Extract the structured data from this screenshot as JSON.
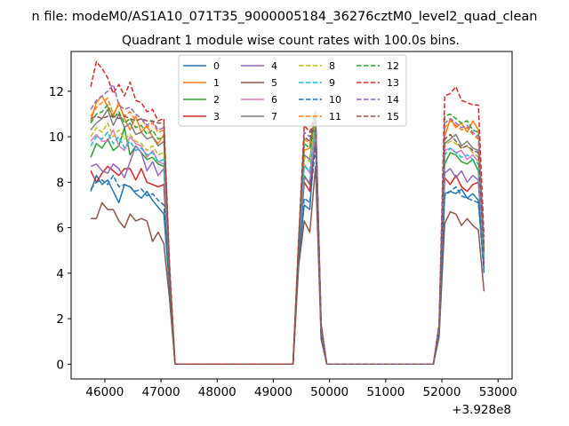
{
  "figure": {
    "suptitle": "n file: modeM0/AS1A10_071T35_9000005184_36276cztM0_level2_quad_clean",
    "offset_label": "+3.928e8"
  },
  "chart_data": {
    "type": "line",
    "title": "Quadrant 1 module wise count rates with 100.0s bins.",
    "xlabel": "",
    "ylabel": "",
    "xlim": [
      45400,
      53250
    ],
    "ylim": [
      -0.65,
      13.75
    ],
    "x_ticks": [
      46000,
      47000,
      48000,
      49000,
      50000,
      51000,
      52000,
      53000
    ],
    "y_ticks": [
      0,
      2,
      4,
      6,
      8,
      10,
      12
    ],
    "grid": false,
    "legend": {
      "placement": "upper-center",
      "columns": 4
    },
    "x_segments": [
      [
        45750,
        45850,
        45950,
        46050,
        46150,
        46250,
        46350,
        46450,
        46550,
        46650,
        46750,
        46850,
        46950,
        47050,
        47150,
        47250,
        49350,
        49450,
        49550,
        49650,
        49750,
        49850,
        49950,
        51850,
        51950,
        52050,
        52150,
        52250,
        52350,
        52450,
        52550,
        52650,
        52750
      ]
    ],
    "series": [
      {
        "name": "0",
        "color": "#1f77b4",
        "style": "solid",
        "values": [
          7.6,
          8.3,
          7.9,
          8.1,
          7.6,
          7.1,
          7.9,
          7.8,
          7.5,
          7.3,
          7.6,
          7.2,
          6.9,
          6.6,
          3.4,
          0,
          0,
          4.6,
          7.0,
          6.8,
          10.5,
          1.3,
          0,
          0,
          1.3,
          7.5,
          7.6,
          7.5,
          7.7,
          7.3,
          7.5,
          7.2,
          4.2
        ]
      },
      {
        "name": "1",
        "color": "#ff7f0e",
        "style": "solid",
        "values": [
          10.7,
          11.5,
          11.8,
          11.3,
          10.9,
          11.5,
          10.8,
          10.3,
          10.9,
          10.2,
          10.5,
          10.0,
          9.7,
          10.1,
          4.1,
          0,
          0,
          5.2,
          9.4,
          9.5,
          10.8,
          1.7,
          0,
          0,
          1.6,
          10.0,
          10.8,
          10.4,
          10.6,
          10.2,
          10.7,
          10.3,
          5.2
        ]
      },
      {
        "name": "2",
        "color": "#2ca02c",
        "style": "solid",
        "values": [
          9.1,
          9.7,
          9.5,
          9.9,
          9.4,
          9.6,
          10.4,
          9.2,
          9.6,
          9.3,
          9.0,
          9.1,
          8.8,
          8.7,
          3.7,
          0,
          0,
          4.9,
          8.3,
          7.9,
          10.6,
          1.4,
          0,
          0,
          1.4,
          8.8,
          9.3,
          9.2,
          8.9,
          8.8,
          9.0,
          8.5,
          4.6
        ]
      },
      {
        "name": "3",
        "color": "#d62728",
        "style": "solid",
        "values": [
          8.5,
          8.0,
          8.4,
          8.7,
          8.5,
          8.3,
          8.6,
          8.6,
          8.1,
          8.6,
          8.0,
          7.9,
          7.8,
          7.9,
          3.6,
          0,
          0,
          4.8,
          8.0,
          7.6,
          10.1,
          1.4,
          0,
          0,
          1.4,
          8.2,
          7.9,
          8.3,
          7.8,
          7.6,
          7.9,
          8.0,
          4.4
        ]
      },
      {
        "name": "4",
        "color": "#9467bd",
        "style": "solid",
        "values": [
          8.7,
          8.8,
          8.5,
          8.4,
          8.8,
          8.6,
          8.2,
          8.9,
          9.6,
          9.3,
          8.5,
          8.9,
          8.3,
          8.6,
          3.8,
          0,
          0,
          4.9,
          8.2,
          8.0,
          10.3,
          1.4,
          0,
          0,
          1.5,
          8.4,
          8.6,
          8.2,
          8.5,
          8.0,
          8.3,
          8.1,
          4.5
        ]
      },
      {
        "name": "5",
        "color": "#8c564b",
        "style": "solid",
        "values": [
          6.4,
          6.4,
          7.1,
          6.8,
          6.8,
          6.3,
          6.0,
          6.6,
          6.3,
          6.4,
          6.3,
          5.4,
          5.8,
          5.3,
          2.9,
          0,
          0,
          4.3,
          6.3,
          5.8,
          8.7,
          1.1,
          0,
          0,
          1.2,
          6.2,
          6.7,
          6.6,
          6.1,
          6.4,
          6.1,
          5.9,
          3.2
        ]
      },
      {
        "name": "6",
        "color": "#e377c2",
        "style": "solid",
        "values": [
          9.8,
          10.1,
          9.8,
          9.8,
          10.3,
          9.6,
          9.4,
          10.0,
          9.7,
          9.6,
          9.1,
          9.4,
          8.9,
          8.8,
          3.9,
          0,
          0,
          5.0,
          8.8,
          8.4,
          10.2,
          1.5,
          0,
          0,
          1.5,
          9.4,
          9.5,
          9.3,
          9.4,
          9.0,
          9.2,
          8.9,
          4.7
        ]
      },
      {
        "name": "7",
        "color": "#7f7f7f",
        "style": "solid",
        "values": [
          10.3,
          10.6,
          10.8,
          11.2,
          10.5,
          11.0,
          10.4,
          10.6,
          10.1,
          10.2,
          9.9,
          10.0,
          9.6,
          9.8,
          4.0,
          0,
          0,
          5.1,
          9.2,
          9.0,
          10.9,
          1.6,
          0,
          0,
          1.6,
          9.7,
          9.9,
          10.1,
          9.6,
          9.8,
          9.5,
          9.4,
          4.9
        ]
      },
      {
        "name": "8",
        "color": "#bcbd22",
        "style": "dashed",
        "values": [
          10.0,
          10.4,
          10.2,
          10.6,
          10.0,
          10.3,
          9.9,
          10.1,
          9.8,
          9.7,
          9.4,
          9.6,
          9.2,
          9.3,
          3.9,
          0,
          0,
          5.0,
          9.1,
          8.9,
          10.7,
          1.5,
          0,
          0,
          1.5,
          9.6,
          9.8,
          9.7,
          9.5,
          9.6,
          9.3,
          9.1,
          4.8
        ]
      },
      {
        "name": "9",
        "color": "#17becf",
        "style": "dashed",
        "values": [
          9.6,
          10.0,
          9.9,
          10.2,
          9.7,
          10.0,
          9.5,
          9.8,
          9.4,
          9.5,
          9.2,
          9.3,
          8.9,
          9.0,
          3.8,
          0,
          0,
          4.9,
          8.7,
          8.5,
          10.4,
          1.5,
          0,
          0,
          1.5,
          9.2,
          9.5,
          9.3,
          9.1,
          9.2,
          9.0,
          8.8,
          4.6
        ]
      },
      {
        "name": "10",
        "color": "#1f77b4",
        "style": "dashed",
        "values": [
          7.7,
          8.0,
          8.1,
          7.9,
          8.3,
          7.8,
          7.9,
          7.8,
          7.6,
          7.7,
          7.4,
          7.5,
          7.2,
          7.0,
          3.4,
          0,
          0,
          4.6,
          7.3,
          7.1,
          9.6,
          1.3,
          0,
          0,
          1.3,
          7.4,
          7.6,
          7.8,
          7.4,
          7.3,
          7.2,
          7.1,
          4.0
        ]
      },
      {
        "name": "11",
        "color": "#ff7f0e",
        "style": "dashed",
        "values": [
          10.9,
          11.3,
          11.5,
          11.7,
          11.0,
          11.4,
          10.9,
          11.1,
          10.7,
          10.8,
          10.4,
          10.6,
          10.2,
          10.3,
          4.2,
          0,
          0,
          5.3,
          9.9,
          9.7,
          11.0,
          1.7,
          0,
          0,
          1.7,
          10.4,
          10.7,
          10.5,
          10.3,
          10.4,
          10.1,
          9.9,
          5.1
        ]
      },
      {
        "name": "12",
        "color": "#2ca02c",
        "style": "dashed",
        "values": [
          10.6,
          11.0,
          11.1,
          11.4,
          10.8,
          11.1,
          10.6,
          10.8,
          10.4,
          10.5,
          10.1,
          10.3,
          9.9,
          10.0,
          4.1,
          0,
          0,
          5.2,
          9.7,
          9.5,
          10.9,
          1.6,
          0,
          0,
          1.6,
          10.9,
          11.0,
          10.8,
          10.6,
          10.7,
          10.3,
          10.2,
          5.0
        ]
      },
      {
        "name": "13",
        "color": "#d62728",
        "style": "dashed",
        "values": [
          12.2,
          13.3,
          13.0,
          12.6,
          11.9,
          12.3,
          11.8,
          12.4,
          11.6,
          11.5,
          11.1,
          11.2,
          10.7,
          10.8,
          4.5,
          0,
          0,
          5.5,
          10.5,
          10.2,
          11.1,
          1.8,
          0,
          0,
          1.8,
          11.8,
          11.9,
          12.2,
          11.6,
          11.5,
          11.4,
          11.4,
          5.6
        ]
      },
      {
        "name": "14",
        "color": "#9467bd",
        "style": "dashed",
        "values": [
          11.2,
          11.6,
          11.8,
          12.0,
          12.3,
          11.4,
          11.2,
          11.3,
          11.0,
          10.8,
          10.5,
          10.7,
          10.3,
          10.4,
          4.3,
          0,
          0,
          5.4,
          10.2,
          10.0,
          11.0,
          1.7,
          0,
          0,
          1.7,
          10.6,
          10.8,
          10.6,
          10.4,
          10.5,
          10.2,
          10.0,
          5.2
        ]
      },
      {
        "name": "15",
        "color": "#8c564b",
        "style": "dashed",
        "values": [
          10.8,
          10.9,
          10.8,
          10.9,
          10.9,
          10.8,
          10.9,
          10.8,
          10.7,
          10.8,
          10.7,
          10.7,
          10.6,
          10.6,
          4.2,
          0,
          0,
          5.3,
          10.0,
          9.8,
          10.9,
          1.7,
          0,
          0,
          1.7,
          9.9,
          10.1,
          9.8,
          9.5,
          9.6,
          9.4,
          9.3,
          4.9
        ]
      }
    ]
  }
}
